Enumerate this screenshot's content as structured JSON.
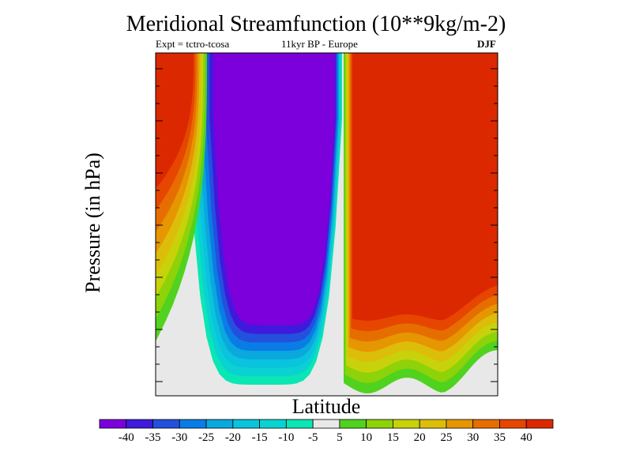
{
  "chart_data": {
    "type": "heatmap",
    "title": "Meridional Streamfunction (10**9kg/m-2)",
    "experiment": "Expt = tctro-tcosa",
    "period_region": "11kyr BP - Europe",
    "season": "DJF",
    "xlabel": "Latitude",
    "ylabel": "Pressure (in hPa)",
    "colorbar": {
      "tick_labels": [
        "-40",
        "-35",
        "-30",
        "-25",
        "-20",
        "-15",
        "-10",
        "-5",
        "5",
        "10",
        "15",
        "20",
        "25",
        "30",
        "35",
        "40"
      ],
      "colors": [
        "#7b00dc",
        "#3e1adc",
        "#2350dc",
        "#0a7ce6",
        "#0aa8dc",
        "#0ac3dc",
        "#0ad2d2",
        "#0ae6b4",
        "#e8e8e8",
        "#50d21e",
        "#8ed20a",
        "#c8d20a",
        "#dcbe0a",
        "#e69600",
        "#e66e00",
        "#e64600",
        "#dc2800"
      ]
    },
    "fields": {
      "background": "#e8e8e8",
      "negative_cell": {
        "sign": "negative",
        "core_value_lt": -40,
        "fill_order_outer_to_inner": [
          "#0ae6b4",
          "#0ad2d2",
          "#0ac3dc",
          "#0aa8dc",
          "#0a7ce6",
          "#2350dc",
          "#3e1adc",
          "#7b00dc"
        ]
      },
      "positive_cells": [
        {
          "name": "northern-cell",
          "core_value_gt": 40,
          "fill_order_outer_to_inner": [
            "#50d21e",
            "#8ed20a",
            "#c8d20a",
            "#dcbe0a",
            "#e69600",
            "#e66e00",
            "#e64600",
            "#dc2800"
          ]
        },
        {
          "name": "southern-cell",
          "core_value_gt": 40,
          "fill_order_outer_to_inner": [
            "#50d21e",
            "#8ed20a",
            "#c8d20a",
            "#dcbe0a",
            "#e69600",
            "#e66e00",
            "#e64600",
            "#dc2800"
          ]
        }
      ]
    }
  }
}
